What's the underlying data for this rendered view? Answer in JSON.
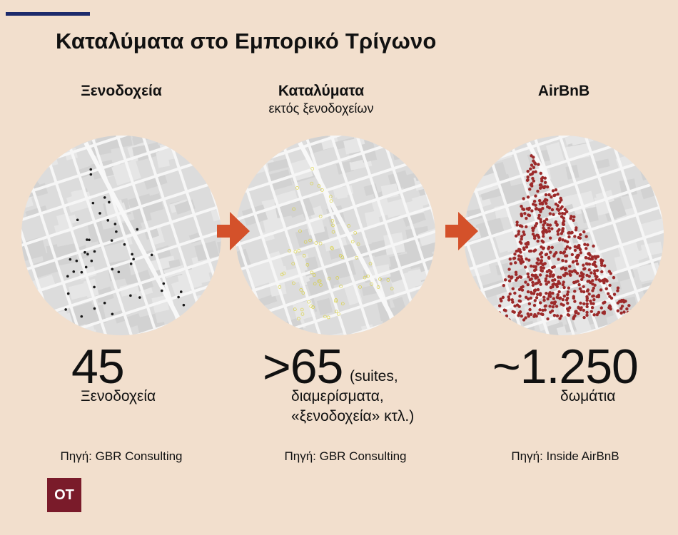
{
  "title": "Καταλύματα στο Εμπορικό Τρίγωνο",
  "columns": [
    {
      "heading": "Ξενοδοχεία",
      "subheading": "",
      "value": "45",
      "value_note": "Ξενοδοχεία",
      "source": "Πηγή: GBR Consulting",
      "dot_color": "#1a1a1a"
    },
    {
      "heading": "Καταλύματα",
      "subheading": "εκτός ξενοδοχείων",
      "value": ">65",
      "value_note_inline": "(suites,",
      "value_note_line2": "διαμερίσματα,",
      "value_note_line3": "«ξενοδοχεία» κτλ.)",
      "source": "Πηγή: GBR Consulting",
      "dot_color": "#d9d030"
    },
    {
      "heading": "AirBnB",
      "subheading": "",
      "value": "~1.250",
      "value_note": "δωμάτια",
      "source": "Πηγή: Inside AirBnB",
      "dot_color": "#9c2a2a"
    }
  ],
  "arrow_color": "#d4512a",
  "logo_text": "OT"
}
